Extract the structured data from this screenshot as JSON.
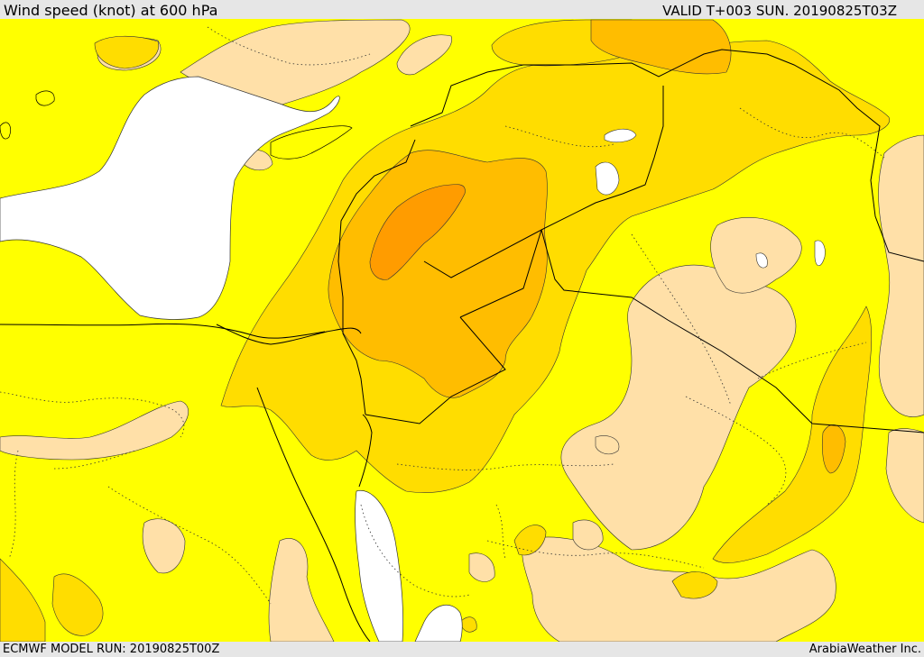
{
  "header": {
    "title": "Wind speed (knot) at 600 hPa",
    "valid": "VALID T+003 SUN. 20190825T03Z"
  },
  "footer": {
    "model_run": "ECMWF MODEL RUN: 20190825T00Z",
    "credit": "ArabiaWeather Inc."
  },
  "colors": {
    "background_band": "#e6e6e6",
    "sea": "#ffffff",
    "wind_low": "#ffe0a8",
    "wind_moderate": "#ffff00",
    "wind_fresh": "#ffdd00",
    "wind_strong": "#ffbd00",
    "wind_very_strong": "#ff9c00"
  }
}
